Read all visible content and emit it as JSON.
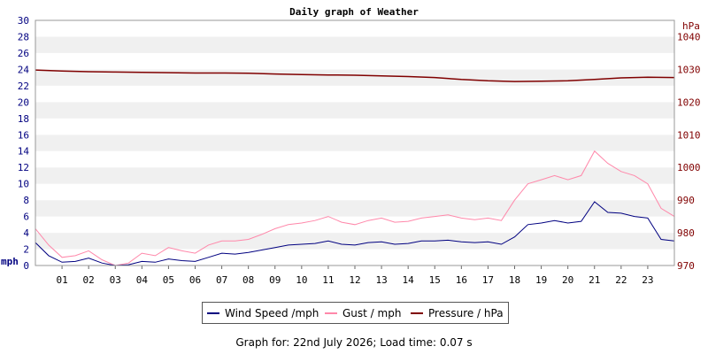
{
  "chart_data": {
    "type": "line",
    "title": "Daily graph of Weather",
    "y_left": {
      "label": "mph",
      "min": 0,
      "max": 30,
      "step": 2
    },
    "y_right": {
      "label": "hPa",
      "min": 970,
      "max": 1045,
      "ticks": [
        970,
        980,
        990,
        1000,
        1010,
        1020,
        1030,
        1040
      ]
    },
    "x": {
      "min": 0,
      "max": 24,
      "ticks": [
        "01",
        "02",
        "03",
        "04",
        "05",
        "06",
        "07",
        "08",
        "09",
        "10",
        "11",
        "12",
        "13",
        "14",
        "15",
        "16",
        "17",
        "18",
        "19",
        "20",
        "21",
        "22",
        "23"
      ]
    },
    "grid": "horizontal-bands",
    "legend_position": "bottom",
    "series": [
      {
        "name": "Wind Speed /mph",
        "color": "#000080",
        "axis": "left",
        "hours": [
          0,
          0.5,
          1,
          1.5,
          2,
          2.5,
          3,
          3.5,
          4,
          4.5,
          5,
          5.5,
          6,
          6.5,
          7,
          7.5,
          8,
          8.5,
          9,
          9.5,
          10,
          10.5,
          11,
          11.5,
          12,
          12.5,
          13,
          13.5,
          14,
          14.5,
          15,
          15.5,
          16,
          16.5,
          17,
          17.5,
          18,
          18.5,
          19,
          19.5,
          20,
          20.5,
          21,
          21.5,
          22,
          22.5,
          23,
          23.5,
          24
        ],
        "values": [
          2.8,
          1.2,
          0.4,
          0.5,
          0.9,
          0.3,
          0.0,
          0.1,
          0.5,
          0.4,
          0.8,
          0.6,
          0.5,
          1.0,
          1.5,
          1.4,
          1.6,
          1.9,
          2.2,
          2.5,
          2.6,
          2.7,
          3.0,
          2.6,
          2.5,
          2.8,
          2.9,
          2.6,
          2.7,
          3.0,
          3.0,
          3.1,
          2.9,
          2.8,
          2.9,
          2.6,
          3.5,
          5.0,
          5.2,
          5.5,
          5.2,
          5.4,
          7.8,
          6.5,
          6.4,
          6.0,
          5.8,
          3.2,
          3.0
        ]
      },
      {
        "name": "Gust / mph",
        "color": "#ff88aa",
        "axis": "left",
        "hours": [
          0,
          0.5,
          1,
          1.5,
          2,
          2.5,
          3,
          3.5,
          4,
          4.5,
          5,
          5.5,
          6,
          6.5,
          7,
          7.5,
          8,
          8.5,
          9,
          9.5,
          10,
          10.5,
          11,
          11.5,
          12,
          12.5,
          13,
          13.5,
          14,
          14.5,
          15,
          15.5,
          16,
          16.5,
          17,
          17.5,
          18,
          18.5,
          19,
          19.5,
          20,
          20.5,
          21,
          21.5,
          22,
          22.5,
          23,
          23.5,
          24
        ],
        "values": [
          4.5,
          2.5,
          1.0,
          1.2,
          1.8,
          0.7,
          0.0,
          0.3,
          1.5,
          1.2,
          2.2,
          1.8,
          1.5,
          2.5,
          3.0,
          3.0,
          3.2,
          3.8,
          4.5,
          5.0,
          5.2,
          5.5,
          6.0,
          5.3,
          5.0,
          5.5,
          5.8,
          5.3,
          5.4,
          5.8,
          6.0,
          6.2,
          5.8,
          5.6,
          5.8,
          5.5,
          8.0,
          10.0,
          10.5,
          11.0,
          10.5,
          11.0,
          14.0,
          12.5,
          11.5,
          11.0,
          10.0,
          7.0,
          6.0
        ]
      },
      {
        "name": "Pressure / hPa",
        "color": "#800000",
        "axis": "right",
        "hours": [
          0,
          1,
          2,
          3,
          4,
          5,
          6,
          7,
          8,
          9,
          10,
          11,
          12,
          13,
          14,
          15,
          16,
          17,
          18,
          19,
          20,
          21,
          22,
          23,
          24
        ],
        "values": [
          1029.8,
          1029.5,
          1029.3,
          1029.2,
          1029.1,
          1029.0,
          1028.9,
          1028.9,
          1028.8,
          1028.6,
          1028.4,
          1028.3,
          1028.2,
          1028.0,
          1027.8,
          1027.5,
          1026.9,
          1026.5,
          1026.3,
          1026.4,
          1026.5,
          1026.9,
          1027.4,
          1027.6,
          1027.5
        ]
      }
    ]
  },
  "footer": "Graph for: 22nd July 2026; Load time: 0.07 s"
}
